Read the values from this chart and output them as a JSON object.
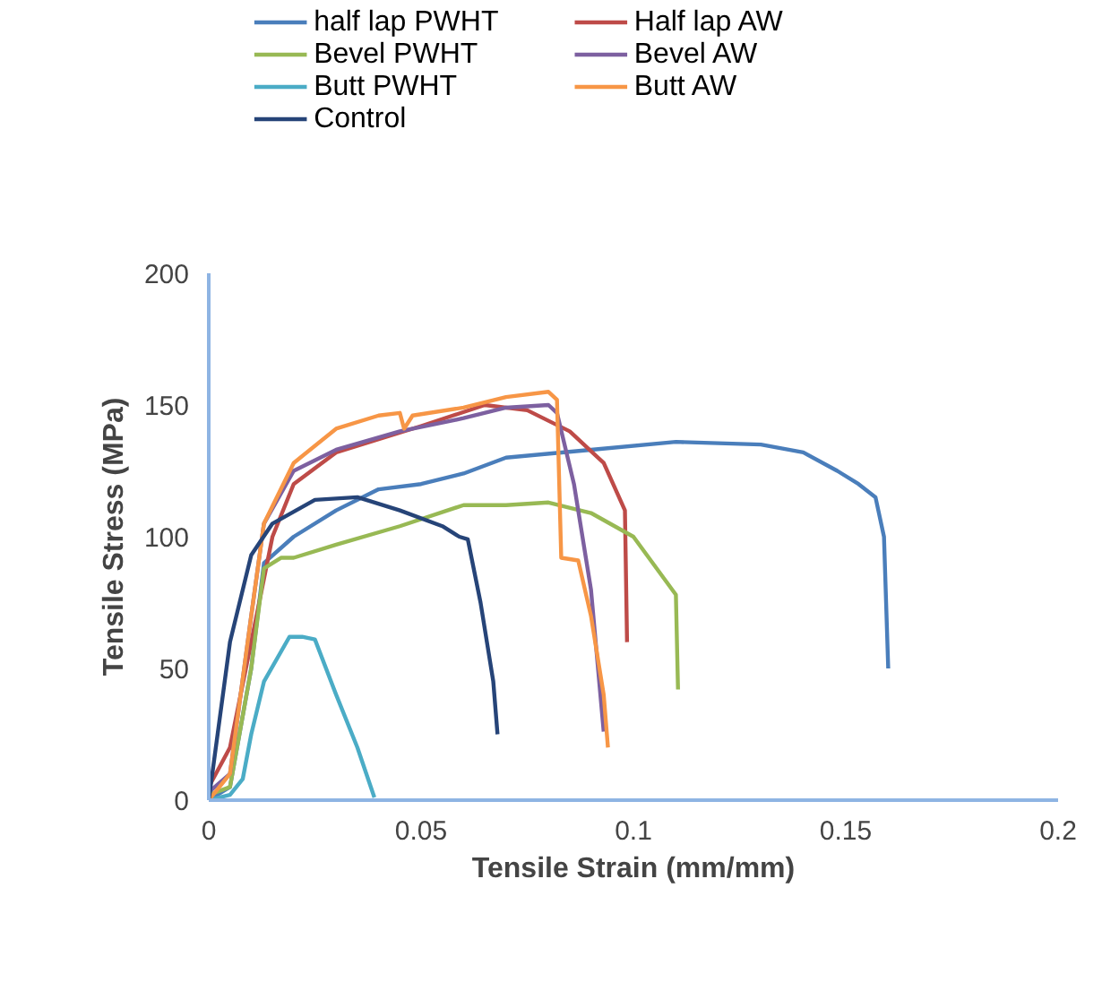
{
  "chart_data": {
    "type": "line",
    "xlabel": "Tensile Strain (mm/mm)",
    "ylabel": "Tensile Stress (MPa)",
    "xlim": [
      0,
      0.2
    ],
    "ylim": [
      0,
      200
    ],
    "xticks": [
      0,
      0.05,
      0.1,
      0.15,
      0.2
    ],
    "yticks": [
      0,
      50,
      100,
      150,
      200
    ],
    "grid": false,
    "legend": "top",
    "marker": "none",
    "line_style": "solid",
    "series": [
      {
        "name": "half lap PWHT",
        "color": "#4a7ebb",
        "x": [
          0,
          0.005,
          0.01,
          0.013,
          0.02,
          0.03,
          0.04,
          0.05,
          0.06,
          0.07,
          0.09,
          0.11,
          0.13,
          0.14,
          0.148,
          0.153,
          0.157,
          0.159,
          0.16
        ],
        "values": [
          0,
          5,
          50,
          90,
          100,
          110,
          118,
          120,
          124,
          130,
          133,
          136,
          135,
          132,
          125,
          120,
          115,
          100,
          50
        ]
      },
      {
        "name": "Half lap AW",
        "color": "#be4b48",
        "x": [
          0,
          0.005,
          0.01,
          0.015,
          0.02,
          0.03,
          0.05,
          0.065,
          0.075,
          0.085,
          0.093,
          0.098,
          0.0985
        ],
        "values": [
          5,
          20,
          60,
          100,
          120,
          132,
          142,
          150,
          148,
          140,
          128,
          110,
          60
        ]
      },
      {
        "name": "Bevel PWHT",
        "color": "#98b954",
        "x": [
          0,
          0.005,
          0.01,
          0.013,
          0.017,
          0.02,
          0.03,
          0.045,
          0.06,
          0.07,
          0.08,
          0.09,
          0.1,
          0.11,
          0.1105
        ],
        "values": [
          2,
          5,
          50,
          88,
          92,
          92,
          97,
          104,
          112,
          112,
          113,
          109,
          100,
          78,
          42
        ]
      },
      {
        "name": "Bevel AW",
        "color": "#7d60a0",
        "x": [
          0,
          0.005,
          0.01,
          0.013,
          0.02,
          0.03,
          0.045,
          0.06,
          0.07,
          0.08,
          0.082,
          0.086,
          0.09,
          0.093
        ],
        "values": [
          3,
          10,
          70,
          105,
          125,
          133,
          140,
          145,
          149,
          150,
          147,
          120,
          80,
          26
        ]
      },
      {
        "name": "Butt PWHT",
        "color": "#4bacc6",
        "x": [
          0,
          0.005,
          0.008,
          0.01,
          0.013,
          0.019,
          0.022,
          0.025,
          0.03,
          0.035,
          0.039
        ],
        "values": [
          0,
          2,
          8,
          25,
          45,
          62,
          62,
          61,
          40,
          20,
          1
        ]
      },
      {
        "name": "Butt AW",
        "color": "#f79646",
        "x": [
          0,
          0.005,
          0.01,
          0.013,
          0.02,
          0.03,
          0.04,
          0.045,
          0.046,
          0.048,
          0.06,
          0.07,
          0.08,
          0.082,
          0.083,
          0.087,
          0.09,
          0.093,
          0.094
        ],
        "values": [
          0,
          10,
          70,
          105,
          128,
          141,
          146,
          147,
          141,
          146,
          149,
          153,
          155,
          152,
          92,
          91,
          70,
          40,
          20
        ]
      },
      {
        "name": "Control",
        "color": "#264478",
        "x": [
          0,
          0.005,
          0.01,
          0.015,
          0.025,
          0.035,
          0.045,
          0.055,
          0.059,
          0.061,
          0.064,
          0.067,
          0.068
        ],
        "values": [
          0,
          60,
          93,
          105,
          114,
          115,
          110,
          104,
          100,
          99,
          75,
          45,
          25
        ]
      }
    ]
  }
}
